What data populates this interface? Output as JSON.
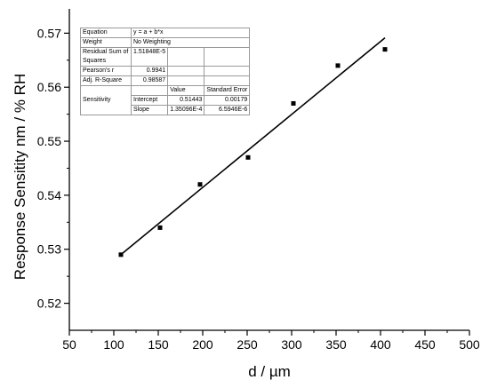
{
  "chart_data": {
    "type": "scatter",
    "xlabel": "d / µm",
    "ylabel": "Response Sensitity nm / % RH",
    "xlim": [
      50,
      500
    ],
    "ylim": [
      0.515,
      0.5745
    ],
    "xticks": [
      50,
      100,
      150,
      200,
      250,
      300,
      350,
      400,
      450,
      500
    ],
    "xtick_labels": [
      "50",
      "100",
      "150",
      "200",
      "250",
      "300",
      "350",
      "400",
      "450",
      "500"
    ],
    "yticks": [
      0.52,
      0.53,
      0.54,
      0.55,
      0.56,
      0.57
    ],
    "ytick_labels": [
      "0.52",
      "0.53",
      "0.54",
      "0.55",
      "0.56",
      "0.57"
    ],
    "grid": false,
    "points": [
      {
        "x": 108,
        "y": 0.529
      },
      {
        "x": 152,
        "y": 0.534
      },
      {
        "x": 197,
        "y": 0.542
      },
      {
        "x": 251,
        "y": 0.547
      },
      {
        "x": 302,
        "y": 0.557
      },
      {
        "x": 352,
        "y": 0.564
      },
      {
        "x": 405,
        "y": 0.567
      }
    ],
    "fit": {
      "intercept": 0.51443,
      "slope": 0.000135096,
      "x_range": [
        108,
        405
      ]
    }
  },
  "stats_table": {
    "equation_label": "Equation",
    "equation_value": "y = a + b*x",
    "weight_label": "Weight",
    "weight_value": "No Weighting",
    "rss_label": "Residual Sum of Squares",
    "rss_value": "1.51848E-5",
    "pearson_label": "Pearson's r",
    "pearson_value": "0.9941",
    "adjr_label": "Adj. R-Square",
    "adjr_value": "0.98587",
    "value_header": "Value",
    "stderr_header": "Standard Error",
    "series_label": "Sensitivity",
    "intercept_label": "Intercept",
    "intercept_value": "0.51443",
    "intercept_error": "0.00179",
    "slope_label": "Slope",
    "slope_value": "1.35096E-4",
    "slope_error": "6.5946E-6"
  }
}
